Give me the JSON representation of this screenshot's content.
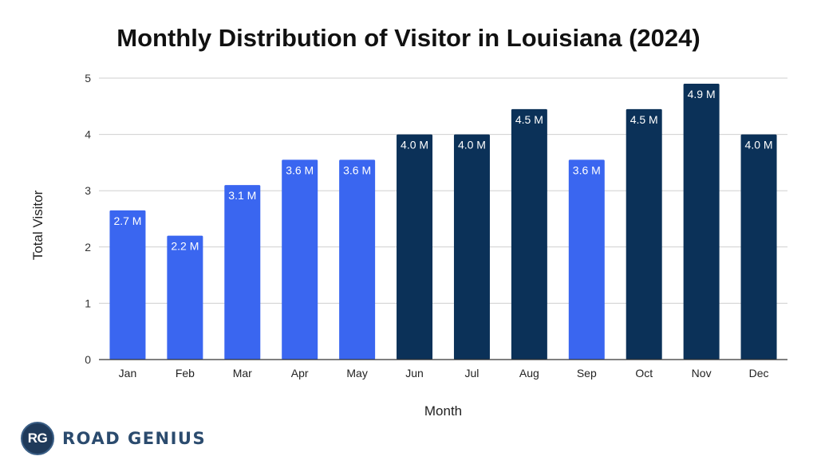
{
  "chart_data": {
    "type": "bar",
    "title": "Monthly Distribution of Visitor in Louisiana (2024)",
    "xlabel": "Month",
    "ylabel": "Total Visitor",
    "ylim": [
      0,
      5
    ],
    "yticks": [
      "0",
      "1",
      "2",
      "3",
      "4",
      "5"
    ],
    "grid": true,
    "categories": [
      "Jan",
      "Feb",
      "Mar",
      "Apr",
      "May",
      "Jun",
      "Jul",
      "Aug",
      "Sep",
      "Oct",
      "Nov",
      "Dec"
    ],
    "values": [
      2.65,
      2.2,
      3.1,
      3.55,
      3.55,
      4.0,
      4.0,
      4.45,
      3.55,
      4.45,
      4.9,
      4.0
    ],
    "labels": [
      "2.7 M",
      "2.2 M",
      "3.1 M",
      "3.6 M",
      "3.6 M",
      "4.0 M",
      "4.0 M",
      "4.5 M",
      "3.6 M",
      "4.5 M",
      "4.9 M",
      "4.0 M"
    ],
    "colors": {
      "light": "#3a66f0",
      "dark": "#0b3158"
    },
    "bar_color_keys": [
      "light",
      "light",
      "light",
      "light",
      "light",
      "dark",
      "dark",
      "dark",
      "light",
      "dark",
      "dark",
      "dark"
    ]
  },
  "branding": {
    "logo_initials": "RG",
    "logo_name": "ROAD GENIUS"
  }
}
